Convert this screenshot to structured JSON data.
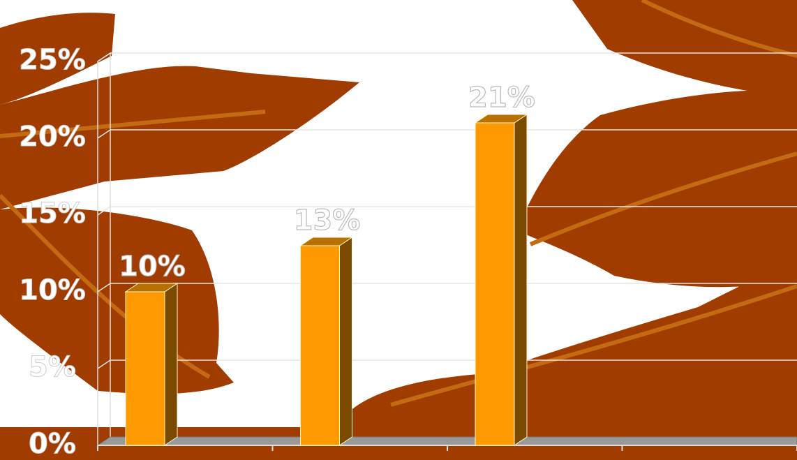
{
  "chart_data": {
    "type": "bar3d",
    "categories": [
      null,
      null,
      null,
      null
    ],
    "values": [
      10,
      13,
      21,
      null
    ],
    "value_labels": [
      "10%",
      "13%",
      "21%",
      null
    ],
    "color": "#ff9900",
    "ylim": [
      0,
      25
    ],
    "yticks": [
      {
        "value": 0,
        "label": "0%"
      },
      {
        "value": 5,
        "label": "5%"
      },
      {
        "value": 10,
        "label": "10%"
      },
      {
        "value": 15,
        "label": "15%"
      },
      {
        "value": 20,
        "label": "20%"
      },
      {
        "value": 25,
        "label": "25%"
      }
    ],
    "grid": true
  }
}
